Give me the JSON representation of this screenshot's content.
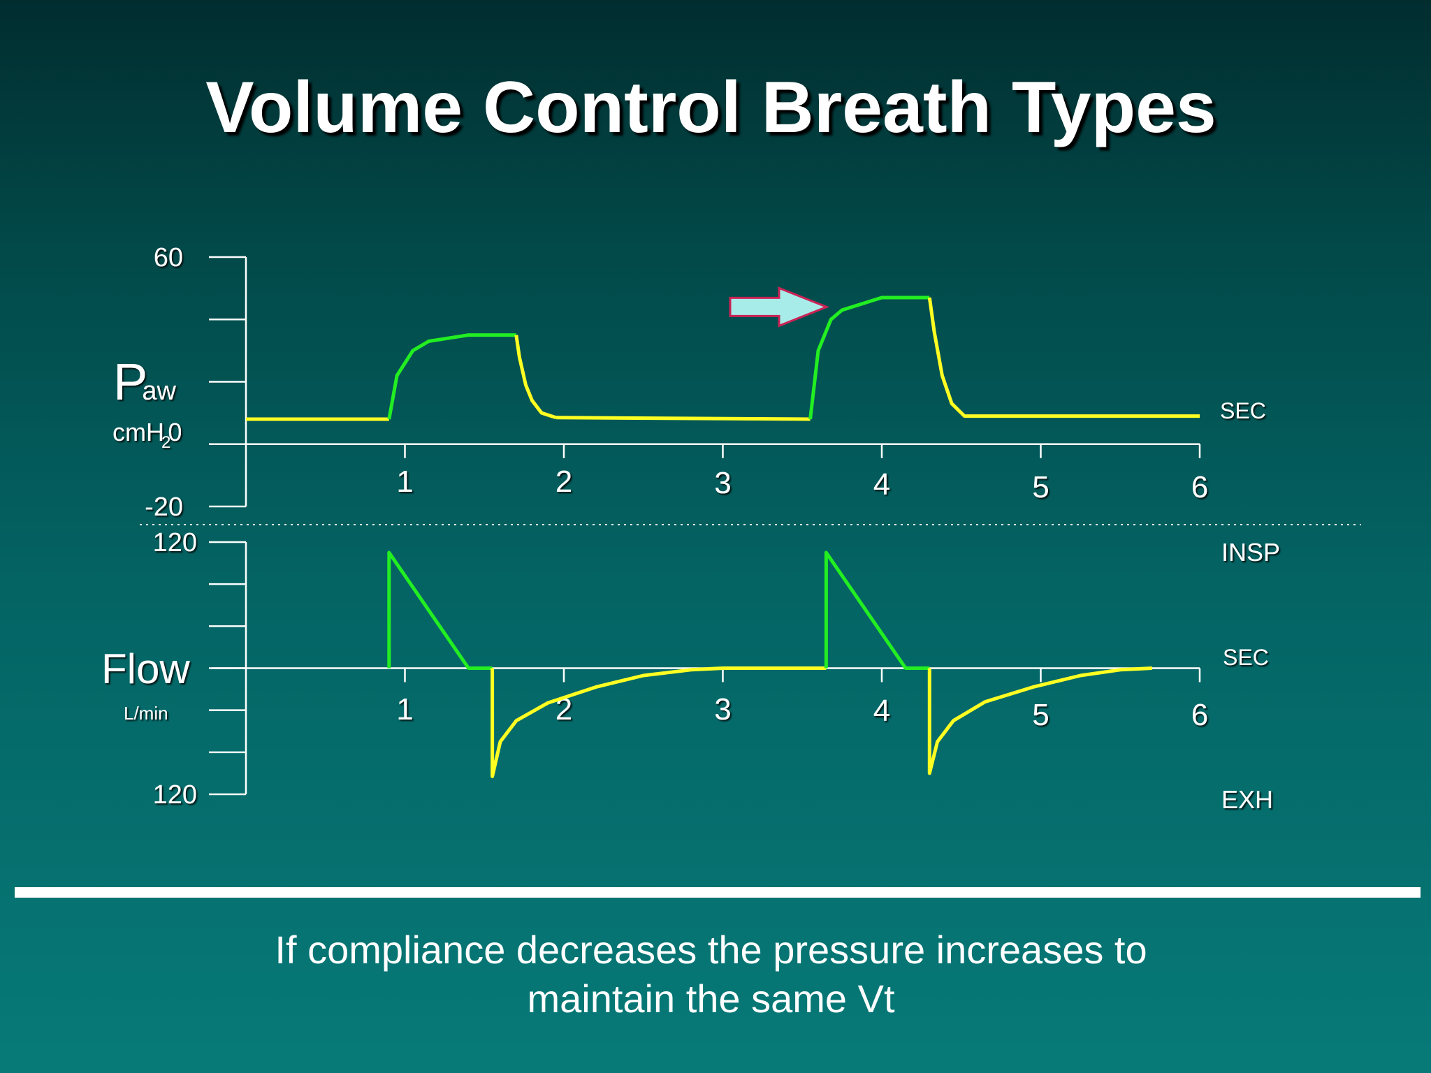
{
  "slide": {
    "title": "Volume Control Breath Types",
    "caption_line1": "If compliance decreases the pressure increases to",
    "caption_line2": "maintain the same Vt"
  },
  "colors": {
    "inspiration": "#22ee22",
    "expiration": "#ffff22",
    "axis": "#ffffff",
    "arrow_fill": "#a8ecea",
    "arrow_stroke": "#cc2255"
  },
  "chart_data": [
    {
      "type": "line",
      "ylabel_main": "P",
      "ylabel_sub": "aw",
      "yunit_main": "cmH",
      "yunit_sub": "2",
      "yunit_end": "0",
      "xlabel": "SEC",
      "ylim": [
        -20,
        60
      ],
      "yticks": [
        60,
        40,
        20,
        0,
        -20
      ],
      "ytick_labels": [
        {
          "value": 60,
          "label": "60"
        },
        {
          "value": -20,
          "label": "-20"
        }
      ],
      "xlim": [
        0,
        6
      ],
      "xticks": [
        1,
        2,
        3,
        4,
        5,
        6
      ],
      "xtick_labels": [
        "1",
        "2",
        "3",
        "4",
        "5",
        "6"
      ],
      "annotation": {
        "type": "arrow",
        "points_to_x": 3.6,
        "at_y": 44
      },
      "series": [
        {
          "phase": "expiration",
          "points": [
            [
              0,
              8
            ],
            [
              0.9,
              8
            ]
          ]
        },
        {
          "phase": "inspiration",
          "points": [
            [
              0.9,
              8
            ],
            [
              0.95,
              22
            ],
            [
              1.05,
              30
            ],
            [
              1.15,
              33
            ],
            [
              1.4,
              35
            ],
            [
              1.7,
              35
            ]
          ]
        },
        {
          "phase": "expiration",
          "points": [
            [
              1.7,
              35
            ],
            [
              1.72,
              28
            ],
            [
              1.76,
              19
            ],
            [
              1.8,
              14
            ],
            [
              1.86,
              10
            ],
            [
              1.95,
              8.5
            ]
          ]
        },
        {
          "phase": "expiration",
          "points": [
            [
              1.95,
              8.5
            ],
            [
              3.55,
              8
            ]
          ]
        },
        {
          "phase": "inspiration",
          "points": [
            [
              3.55,
              8
            ],
            [
              3.6,
              30
            ],
            [
              3.68,
              40
            ],
            [
              3.75,
              43
            ],
            [
              4.0,
              47
            ],
            [
              4.3,
              47
            ]
          ]
        },
        {
          "phase": "expiration",
          "points": [
            [
              4.3,
              47
            ],
            [
              4.33,
              36
            ],
            [
              4.38,
              22
            ],
            [
              4.44,
              13
            ],
            [
              4.52,
              9
            ],
            [
              6.0,
              9
            ]
          ]
        }
      ]
    },
    {
      "type": "line",
      "ylabel": "Flow",
      "yunit": "L/min",
      "xlabel": "SEC",
      "top_label": "INSP",
      "bottom_label": "EXH",
      "ylim": [
        -120,
        120
      ],
      "yticks": [
        120,
        80,
        40,
        0,
        -40,
        -80,
        -120
      ],
      "ytick_labels": [
        {
          "value": 120,
          "label": "120"
        },
        {
          "value": -120,
          "label": "120"
        }
      ],
      "xlim": [
        0,
        6
      ],
      "xticks": [
        1,
        2,
        3,
        4,
        5,
        6
      ],
      "xtick_labels": [
        "1",
        "2",
        "3",
        "4",
        "5",
        "6"
      ],
      "series": [
        {
          "phase": "inspiration",
          "points": [
            [
              0.9,
              0
            ],
            [
              0.9,
              110
            ],
            [
              1.4,
              0
            ],
            [
              1.55,
              0
            ]
          ]
        },
        {
          "phase": "expiration",
          "points": [
            [
              1.55,
              0
            ],
            [
              1.55,
              -103
            ],
            [
              1.6,
              -70
            ],
            [
              1.7,
              -50
            ],
            [
              1.9,
              -33
            ],
            [
              2.2,
              -18
            ],
            [
              2.5,
              -7
            ],
            [
              2.8,
              -1.5
            ],
            [
              3.0,
              0
            ]
          ]
        },
        {
          "phase": "expiration",
          "points": [
            [
              3.0,
              0
            ],
            [
              3.65,
              0
            ]
          ]
        },
        {
          "phase": "inspiration",
          "points": [
            [
              3.65,
              0
            ],
            [
              3.65,
              110
            ],
            [
              4.15,
              0
            ],
            [
              4.3,
              0
            ]
          ]
        },
        {
          "phase": "expiration",
          "points": [
            [
              4.3,
              0
            ],
            [
              4.3,
              -100
            ],
            [
              4.35,
              -70
            ],
            [
              4.45,
              -50
            ],
            [
              4.65,
              -32
            ],
            [
              4.95,
              -18
            ],
            [
              5.25,
              -7
            ],
            [
              5.5,
              -1.5
            ],
            [
              5.7,
              0
            ]
          ]
        }
      ]
    }
  ]
}
